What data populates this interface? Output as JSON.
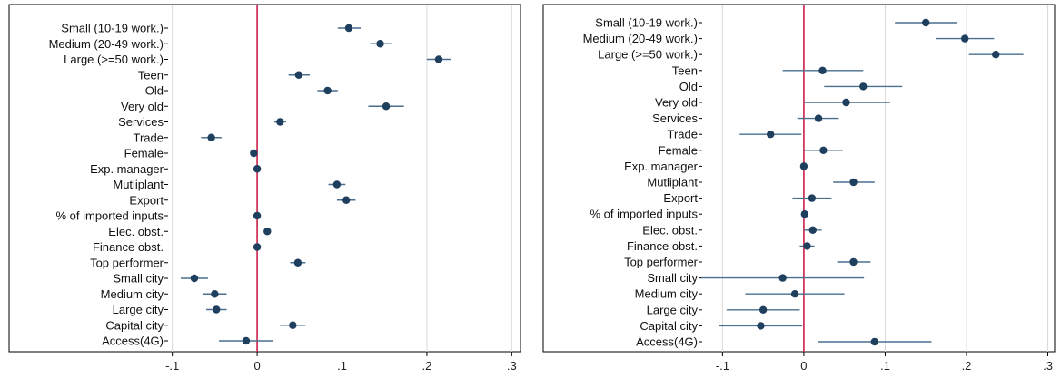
{
  "colors": {
    "point": "#1f3f5f",
    "ci": "#4a6f8f",
    "zero_line": "#c8204a",
    "frame": "#000000",
    "grid": "#d9d9d9"
  },
  "chart_data": [
    {
      "type": "scatter",
      "categories": [
        "Small (10-19 work.)",
        "Medium (20-49 work.)",
        "Large (>=50 work.)",
        "Teen",
        "Old",
        "Very old",
        "Services",
        "Trade",
        "Female",
        "Exp. manager",
        "Mutliplant",
        "Export",
        "% of imported inputs",
        "Elec. obst.",
        "Finance obst.",
        "Top performer",
        "Small city",
        "Medium city",
        "Large city",
        "Capital city",
        "Access(4G)"
      ],
      "values": [
        0.108,
        0.145,
        0.214,
        0.049,
        0.083,
        0.152,
        0.027,
        -0.054,
        -0.004,
        0.0,
        0.094,
        0.105,
        0.0,
        0.012,
        0.0,
        0.048,
        -0.074,
        -0.05,
        -0.048,
        0.042,
        -0.013
      ],
      "ci_low": [
        0.095,
        0.133,
        0.2,
        0.037,
        0.071,
        0.131,
        0.02,
        -0.066,
        -0.008,
        -0.002,
        0.084,
        0.094,
        -0.002,
        0.008,
        -0.003,
        0.039,
        -0.09,
        -0.064,
        -0.06,
        0.027,
        -0.045
      ],
      "ci_high": [
        0.122,
        0.158,
        0.228,
        0.062,
        0.095,
        0.173,
        0.034,
        -0.042,
        0.0,
        0.002,
        0.104,
        0.116,
        0.002,
        0.016,
        0.003,
        0.057,
        -0.058,
        -0.036,
        -0.036,
        0.057,
        0.019
      ],
      "x_ticks": [
        -0.1,
        0,
        0.1,
        0.2,
        0.3
      ],
      "x_tick_labels": [
        "-.1",
        "0",
        ".1",
        ".2",
        ".3"
      ],
      "xlim": [
        -0.105,
        0.305
      ],
      "grid": true,
      "ref_line": 0
    },
    {
      "type": "scatter",
      "categories": [
        "Small (10-19 work.)",
        "Medium (20-49 work.)",
        "Large (>=50 work.)",
        "Teen",
        "Old",
        "Very old",
        "Services",
        "Trade",
        "Female",
        "Exp. manager",
        "Mutliplant",
        "Export",
        "% of imported inputs",
        "Elec. obst.",
        "Finance obst.",
        "Top performer",
        "Small city",
        "Medium city",
        "Large city",
        "Capital city",
        "Access(4G)"
      ],
      "values": [
        0.15,
        0.198,
        0.236,
        0.023,
        0.073,
        0.052,
        0.018,
        -0.041,
        0.024,
        0.0,
        0.061,
        0.01,
        0.001,
        0.011,
        0.004,
        0.061,
        -0.026,
        -0.011,
        -0.05,
        -0.053,
        0.087
      ],
      "ci_low": [
        0.112,
        0.162,
        0.203,
        -0.026,
        0.025,
        0.0,
        -0.008,
        -0.079,
        0.0,
        -0.002,
        0.036,
        -0.014,
        -0.003,
        0.0,
        -0.005,
        0.041,
        -0.126,
        -0.072,
        -0.095,
        -0.104,
        0.017
      ],
      "ci_high": [
        0.188,
        0.234,
        0.27,
        0.073,
        0.121,
        0.106,
        0.043,
        -0.003,
        0.048,
        0.002,
        0.087,
        0.034,
        0.005,
        0.022,
        0.013,
        0.082,
        0.074,
        0.05,
        -0.005,
        -0.002,
        0.157
      ],
      "x_ticks": [
        -0.1,
        0,
        0.1,
        0.2,
        0.3
      ],
      "x_tick_labels": [
        "-.1",
        "0",
        ".1",
        ".2",
        ".3"
      ],
      "xlim": [
        -0.125,
        0.305
      ],
      "grid": true,
      "ref_line": 0
    }
  ]
}
